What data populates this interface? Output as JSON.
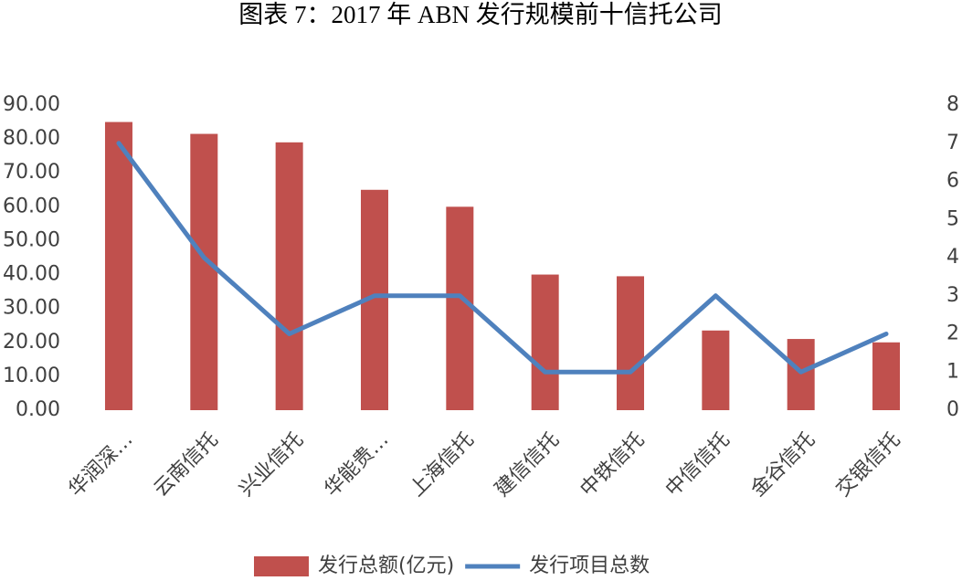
{
  "chart_data": {
    "type": "bar",
    "title": "图表 7：2017 年 ABN 发行规模前十信托公司",
    "categories": [
      "华润深…",
      "云南信托",
      "兴业信托",
      "华能贵…",
      "上海信托",
      "建信信托",
      "中铁信托",
      "中信信托",
      "金谷信托",
      "交银信托"
    ],
    "series": [
      {
        "name": "发行总额(亿元)",
        "type": "bar",
        "color": "#c0504d",
        "values": [
          85,
          81.5,
          79,
          65,
          60,
          40,
          39.5,
          23.5,
          21,
          20
        ]
      },
      {
        "name": "发行项目总数",
        "type": "line",
        "axis": "y2",
        "color": "#4f81bd",
        "values": [
          7,
          4,
          2,
          3,
          3,
          1,
          1,
          3,
          1,
          2
        ]
      }
    ],
    "ylim": [
      0,
      90
    ],
    "yticks": [
      {
        "value": 0,
        "label": "0.00"
      },
      {
        "value": 10,
        "label": "10.00"
      },
      {
        "value": 20,
        "label": "20.00"
      },
      {
        "value": 30,
        "label": "30.00"
      },
      {
        "value": 40,
        "label": "40.00"
      },
      {
        "value": 50,
        "label": "50.00"
      },
      {
        "value": 60,
        "label": "60.00"
      },
      {
        "value": 70,
        "label": "70.00"
      },
      {
        "value": 80,
        "label": "80.00"
      },
      {
        "value": 90,
        "label": "90.00"
      }
    ],
    "y2lim": [
      0,
      8
    ],
    "y2ticks": [
      0,
      1,
      2,
      3,
      4,
      5,
      6,
      7,
      8
    ],
    "grid": false,
    "legend": "bottom"
  }
}
